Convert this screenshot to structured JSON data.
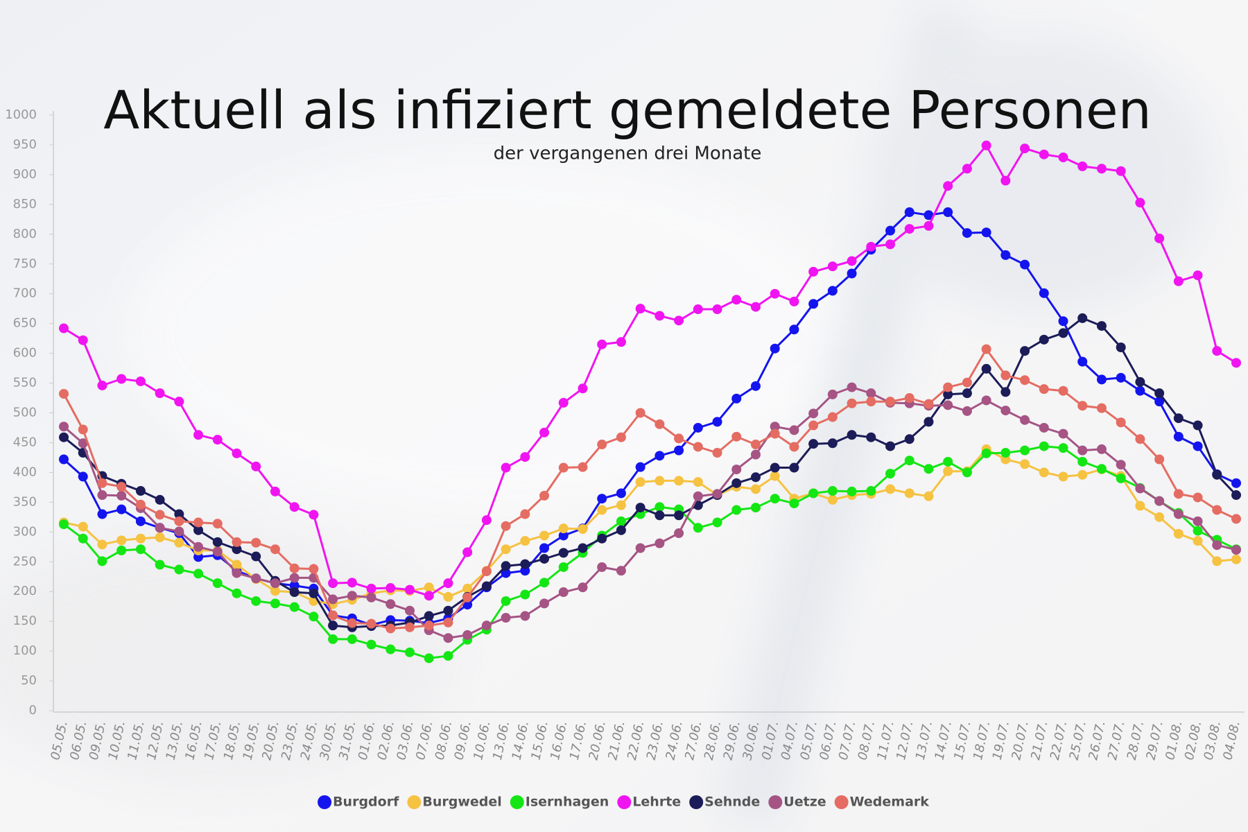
{
  "chart_data": {
    "type": "line",
    "title": "Aktuell als infiziert gemeldete Personen",
    "subtitle": "der vergangenen drei Monate",
    "categories": [
      "05.05.",
      "06.05.",
      "09.05.",
      "10.05.",
      "11.05.",
      "12.05.",
      "13.05.",
      "16.05.",
      "17.05.",
      "18.05.",
      "19.05.",
      "20.05.",
      "23.05.",
      "24.05.",
      "30.05.",
      "31.05.",
      "01.06.",
      "02.06.",
      "03.06.",
      "07.06.",
      "08.06.",
      "09.06.",
      "10.06.",
      "13.06.",
      "14.06.",
      "15.06.",
      "16.06.",
      "17.06.",
      "20.06.",
      "21.06.",
      "22.06.",
      "23.06.",
      "24.06.",
      "27.06.",
      "28.06.",
      "29.06.",
      "30.06.",
      "01.07.",
      "04.07.",
      "05.07.",
      "06.07.",
      "07.07.",
      "08.07.",
      "11.07.",
      "12.07.",
      "13.07.",
      "14.07.",
      "15.07.",
      "18.07.",
      "19.07.",
      "20.07.",
      "21.07.",
      "22.07.",
      "25.07.",
      "26.07.",
      "27.07.",
      "28.07.",
      "29.07.",
      "01.08.",
      "02.08.",
      "03.08.",
      "04.08."
    ],
    "ylim": [
      0,
      1000
    ],
    "yticks": [
      0,
      50,
      100,
      150,
      200,
      250,
      300,
      350,
      400,
      450,
      500,
      550,
      600,
      650,
      700,
      750,
      800,
      850,
      900,
      950,
      1000
    ],
    "grid": false,
    "legend": "bottom",
    "series": [
      {
        "name": "Burgdorf",
        "color": "#1414ee",
        "values": [
          422,
          393,
          330,
          338,
          318,
          307,
          298,
          258,
          261,
          235,
          222,
          214,
          210,
          205,
          160,
          155,
          144,
          152,
          151,
          147,
          155,
          178,
          207,
          231,
          235,
          273,
          294,
          306,
          356,
          365,
          409,
          428,
          437,
          475,
          485,
          524,
          545,
          608,
          640,
          683,
          705,
          734,
          774,
          806,
          837,
          832,
          837,
          802,
          803,
          765,
          749,
          701,
          654,
          586,
          556,
          559,
          537,
          519,
          460,
          444,
          397,
          382
        ]
      },
      {
        "name": "Burgwedel",
        "color": "#f5c242",
        "values": [
          316,
          309,
          279,
          286,
          289,
          291,
          282,
          269,
          269,
          245,
          221,
          201,
          199,
          184,
          179,
          186,
          197,
          202,
          201,
          207,
          191,
          205,
          235,
          271,
          285,
          294,
          306,
          305,
          337,
          345,
          384,
          386,
          386,
          384,
          362,
          376,
          372,
          394,
          356,
          365,
          354,
          362,
          364,
          372,
          365,
          360,
          402,
          402,
          439,
          422,
          414,
          400,
          393,
          396,
          405,
          394,
          344,
          325,
          297,
          285,
          251,
          254
        ]
      },
      {
        "name": "Isernhagen",
        "color": "#14e614",
        "values": [
          313,
          289,
          251,
          269,
          271,
          245,
          237,
          230,
          214,
          197,
          184,
          180,
          174,
          158,
          120,
          120,
          111,
          103,
          98,
          88,
          92,
          119,
          136,
          184,
          195,
          215,
          241,
          265,
          294,
          318,
          330,
          342,
          338,
          307,
          316,
          337,
          341,
          356,
          348,
          365,
          369,
          368,
          369,
          398,
          420,
          406,
          418,
          400,
          432,
          433,
          437,
          444,
          441,
          418,
          406,
          390,
          374,
          352,
          332,
          302,
          287,
          271
        ]
      },
      {
        "name": "Lehrte",
        "color": "#f014f0",
        "values": [
          642,
          622,
          546,
          557,
          553,
          533,
          519,
          463,
          455,
          432,
          410,
          368,
          342,
          329,
          214,
          215,
          205,
          206,
          203,
          193,
          214,
          266,
          320,
          408,
          426,
          467,
          517,
          541,
          615,
          619,
          675,
          663,
          655,
          674,
          674,
          690,
          678,
          700,
          687,
          737,
          746,
          755,
          779,
          783,
          809,
          814,
          881,
          910,
          949,
          890,
          944,
          934,
          929,
          914,
          910,
          906,
          853,
          793,
          721,
          731,
          604,
          584
        ]
      },
      {
        "name": "Sehnde",
        "color": "#1c1c58",
        "values": [
          459,
          433,
          394,
          381,
          369,
          354,
          330,
          303,
          283,
          271,
          259,
          218,
          199,
          197,
          143,
          140,
          142,
          143,
          148,
          159,
          168,
          191,
          209,
          243,
          246,
          255,
          265,
          273,
          289,
          303,
          341,
          328,
          328,
          345,
          362,
          382,
          392,
          408,
          408,
          448,
          449,
          463,
          459,
          444,
          456,
          485,
          531,
          533,
          574,
          535,
          604,
          623,
          634,
          659,
          646,
          610,
          552,
          533,
          491,
          479,
          396,
          362
        ]
      },
      {
        "name": "Uetze",
        "color": "#a55484",
        "values": [
          477,
          449,
          362,
          361,
          340,
          307,
          301,
          275,
          267,
          231,
          222,
          214,
          223,
          223,
          187,
          193,
          190,
          179,
          168,
          135,
          122,
          127,
          143,
          156,
          159,
          180,
          199,
          207,
          241,
          235,
          273,
          281,
          298,
          360,
          364,
          405,
          430,
          477,
          471,
          499,
          531,
          543,
          533,
          517,
          516,
          512,
          513,
          503,
          521,
          504,
          488,
          475,
          465,
          437,
          439,
          413,
          373,
          352,
          330,
          318,
          278,
          270
        ]
      },
      {
        "name": "Wedemark",
        "color": "#e46c62",
        "values": [
          532,
          472,
          382,
          376,
          346,
          329,
          318,
          316,
          314,
          283,
          282,
          271,
          239,
          238,
          160,
          147,
          146,
          138,
          140,
          143,
          148,
          190,
          234,
          310,
          330,
          361,
          408,
          409,
          447,
          459,
          500,
          481,
          457,
          443,
          433,
          460,
          447,
          465,
          443,
          479,
          493,
          516,
          519,
          519,
          525,
          515,
          543,
          551,
          607,
          563,
          555,
          540,
          537,
          512,
          508,
          484,
          456,
          422,
          364,
          358,
          337,
          322
        ]
      }
    ]
  }
}
